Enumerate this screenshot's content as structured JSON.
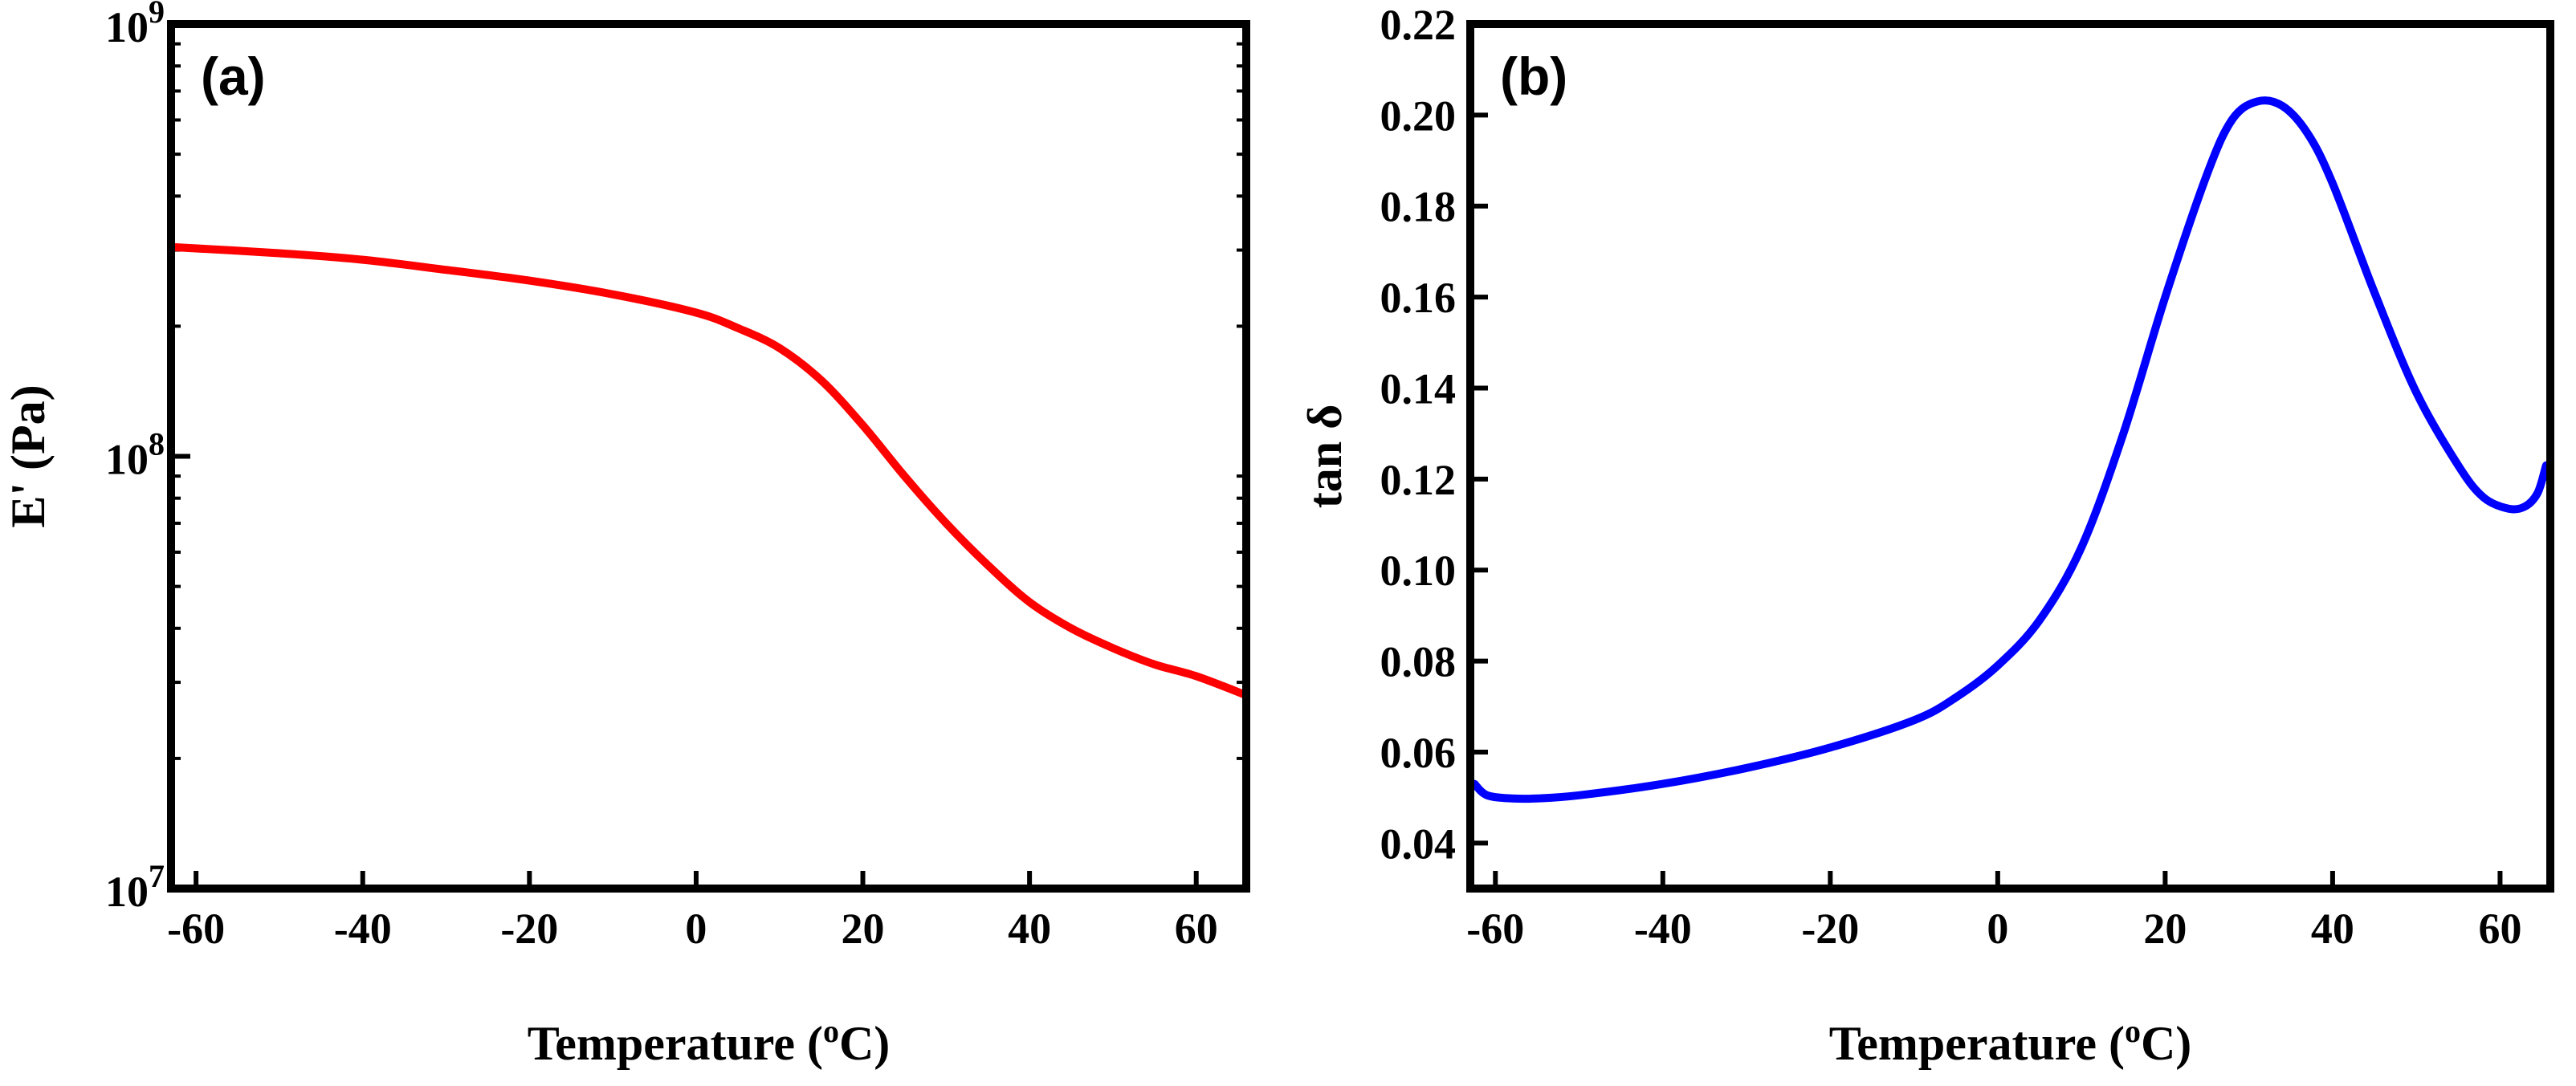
{
  "chart_data": [
    {
      "id": "a",
      "type": "line",
      "panel_label": "(a)",
      "xlabel_prefix": "Temperature (",
      "xlabel_sup": "o",
      "xlabel_suffix": "C)",
      "ylabel": "E' (Pa)",
      "yscale": "log",
      "xlim": [
        -63,
        66
      ],
      "ylim": [
        10000000,
        1000000000
      ],
      "xticks": [
        -60,
        -40,
        -20,
        0,
        20,
        40,
        60
      ],
      "xtick_labels": [
        "-60",
        "-40",
        "-20",
        "0",
        "20",
        "40",
        "60"
      ],
      "yticks": [
        {
          "value": 10000000,
          "base": "10",
          "exp": "7"
        },
        {
          "value": 100000000,
          "base": "10",
          "exp": "8"
        },
        {
          "value": 1000000000,
          "base": "10",
          "exp": "9"
        }
      ],
      "color": "#ff0000",
      "series": [
        {
          "name": "E'",
          "x": [
            -63,
            -50,
            -40,
            -30,
            -20,
            -10,
            0,
            5,
            10,
            15,
            20,
            25,
            30,
            35,
            40,
            45,
            50,
            55,
            60,
            66
          ],
          "y": [
            305000000,
            295000000,
            285000000,
            270000000,
            255000000,
            237000000,
            215000000,
            198000000,
            178000000,
            150000000,
            118000000,
            90000000,
            70000000,
            56000000,
            46000000,
            40000000,
            36000000,
            33000000,
            31000000,
            28000000
          ]
        }
      ]
    },
    {
      "id": "b",
      "type": "line",
      "panel_label": "(b)",
      "xlabel_prefix": "Temperature (",
      "xlabel_sup": "o",
      "xlabel_suffix": "C)",
      "ylabel": "tan δ",
      "yscale": "linear",
      "xlim": [
        -63,
        66
      ],
      "ylim": [
        0.03,
        0.22
      ],
      "xticks": [
        -60,
        -40,
        -20,
        0,
        20,
        40,
        60
      ],
      "xtick_labels": [
        "-60",
        "-40",
        "-20",
        "0",
        "20",
        "40",
        "60"
      ],
      "yticks": [
        {
          "value": 0.04,
          "label": "0.04"
        },
        {
          "value": 0.06,
          "label": "0.06"
        },
        {
          "value": 0.08,
          "label": "0.08"
        },
        {
          "value": 0.1,
          "label": "0.10"
        },
        {
          "value": 0.12,
          "label": "0.12"
        },
        {
          "value": 0.14,
          "label": "0.14"
        },
        {
          "value": 0.16,
          "label": "0.16"
        },
        {
          "value": 0.18,
          "label": "0.18"
        },
        {
          "value": 0.2,
          "label": "0.20"
        },
        {
          "value": 0.22,
          "label": "0.22"
        }
      ],
      "color": "#0000ff",
      "series": [
        {
          "name": "tan δ",
          "x": [
            -62.5,
            -61,
            -58,
            -55,
            -50,
            -40,
            -30,
            -20,
            -10,
            -5,
            0,
            5,
            10,
            15,
            20,
            25,
            28,
            31,
            34,
            37,
            40,
            45,
            50,
            55,
            58,
            61,
            63,
            64.5,
            65.5
          ],
          "y": [
            0.053,
            0.0505,
            0.0498,
            0.0498,
            0.0505,
            0.053,
            0.0565,
            0.061,
            0.067,
            0.072,
            0.079,
            0.089,
            0.105,
            0.13,
            0.16,
            0.187,
            0.199,
            0.203,
            0.202,
            0.196,
            0.185,
            0.161,
            0.139,
            0.123,
            0.116,
            0.1135,
            0.114,
            0.117,
            0.123
          ]
        }
      ]
    }
  ]
}
